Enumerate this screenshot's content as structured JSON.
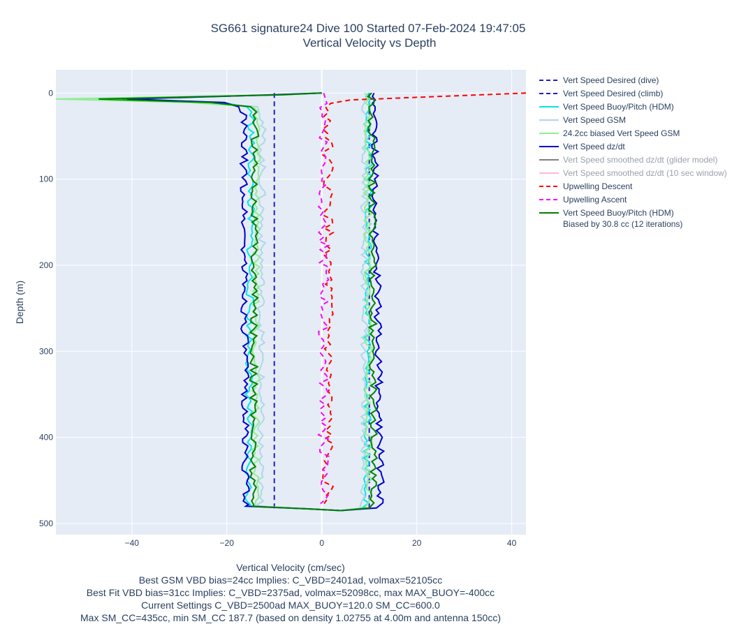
{
  "chart_data": {
    "type": "line",
    "title": "SG661 signature24 Dive 100 Started 07-Feb-2024 19:47:05",
    "subtitle": "Vertical Velocity vs Depth",
    "xlabel": "Vertical Velocity (cm/sec)",
    "ylabel": "Depth (m)",
    "xlim": [
      -56,
      43
    ],
    "ylim": [
      513,
      -27
    ],
    "y_reversed": true,
    "grid": true,
    "legend_position": "right",
    "x_ticks": [
      -40,
      -20,
      0,
      20,
      40
    ],
    "y_ticks": [
      0,
      100,
      200,
      300,
      400,
      500
    ],
    "notes": [
      "Best GSM VBD bias=24cc Implies: C_VBD=2401ad, volmax=52105cc",
      "Best Fit VBD bias=31cc Implies: C_VBD=2375ad, volmax=52098cc, max MAX_BUOY=-400cc",
      "Current Settings C_VBD=2500ad MAX_BUOY=120.0 SM_CC=600.0",
      "Max SM_CC=435cc, min SM_CC 187.7 (based on density 1.02755 at 4.00m and antenna 150cc)"
    ],
    "series": [
      {
        "name": "Vert Speed Desired (dive)",
        "color": "#1f1fbf",
        "dash": "dash",
        "visible": true,
        "descent_value": -10,
        "depth_range": [
          0,
          485
        ]
      },
      {
        "name": "Vert Speed Desired (climb)",
        "color": "#1f1fbf",
        "dash": "dash",
        "visible": true,
        "ascent_value": 10,
        "depth_range": [
          0,
          485
        ]
      },
      {
        "name": "Vert Speed Buoy/Pitch (HDM)",
        "color": "#00e6e6",
        "dash": "solid",
        "visible": true,
        "peak": -42,
        "descent_bottom": -15.5,
        "descent_top": -14.8,
        "ascent_top": 10.0,
        "ascent_bottom": 9.5
      },
      {
        "name": "Vert Speed GSM",
        "color": "#add8e6",
        "dash": "solid",
        "visible": true,
        "peak": -50,
        "descent_bottom": -13.0,
        "descent_top": -12.5,
        "ascent_top": 9.0,
        "ascent_bottom": 9.0
      },
      {
        "name": "24.2cc biased Vert Speed GSM",
        "color": "#90ee90",
        "dash": "solid",
        "visible": true,
        "peak": -56,
        "descent_bottom": -14.0,
        "descent_top": -13.5,
        "ascent_top": 9.5,
        "ascent_bottom": 10.0
      },
      {
        "name": "Vert Speed dz/dt",
        "color": "#0000cd",
        "dash": "solid",
        "visible": true,
        "peak": -41,
        "descent_bottom": -16.0,
        "descent_top": -16.5,
        "ascent_top": 11.0,
        "ascent_bottom": 12.5
      },
      {
        "name": "Vert Speed smoothed dz/dt (glider model)",
        "color": "#808080",
        "dash": "solid",
        "visible": false
      },
      {
        "name": "Vert Speed smoothed dz/dt (10 sec window)",
        "color": "#ffb6e0",
        "dash": "solid",
        "visible": false
      },
      {
        "name": "Upwelling Descent",
        "color": "#ff0000",
        "dash": "dash",
        "visible": true,
        "mean": 1.3,
        "surface_spike": 43
      },
      {
        "name": "Upwelling Ascent",
        "color": "#ff00ff",
        "dash": "dash",
        "visible": true,
        "mean": 0.4
      },
      {
        "name": "Vert Speed Buoy/Pitch (HDM)\nBiased by 30.8 cc (12 iterations)",
        "color": "#008000",
        "dash": "solid",
        "visible": true,
        "peak": -47,
        "descent_bottom": -14.5,
        "descent_top": -14.0,
        "ascent_top": 10.5,
        "ascent_bottom": 11.0
      }
    ]
  }
}
